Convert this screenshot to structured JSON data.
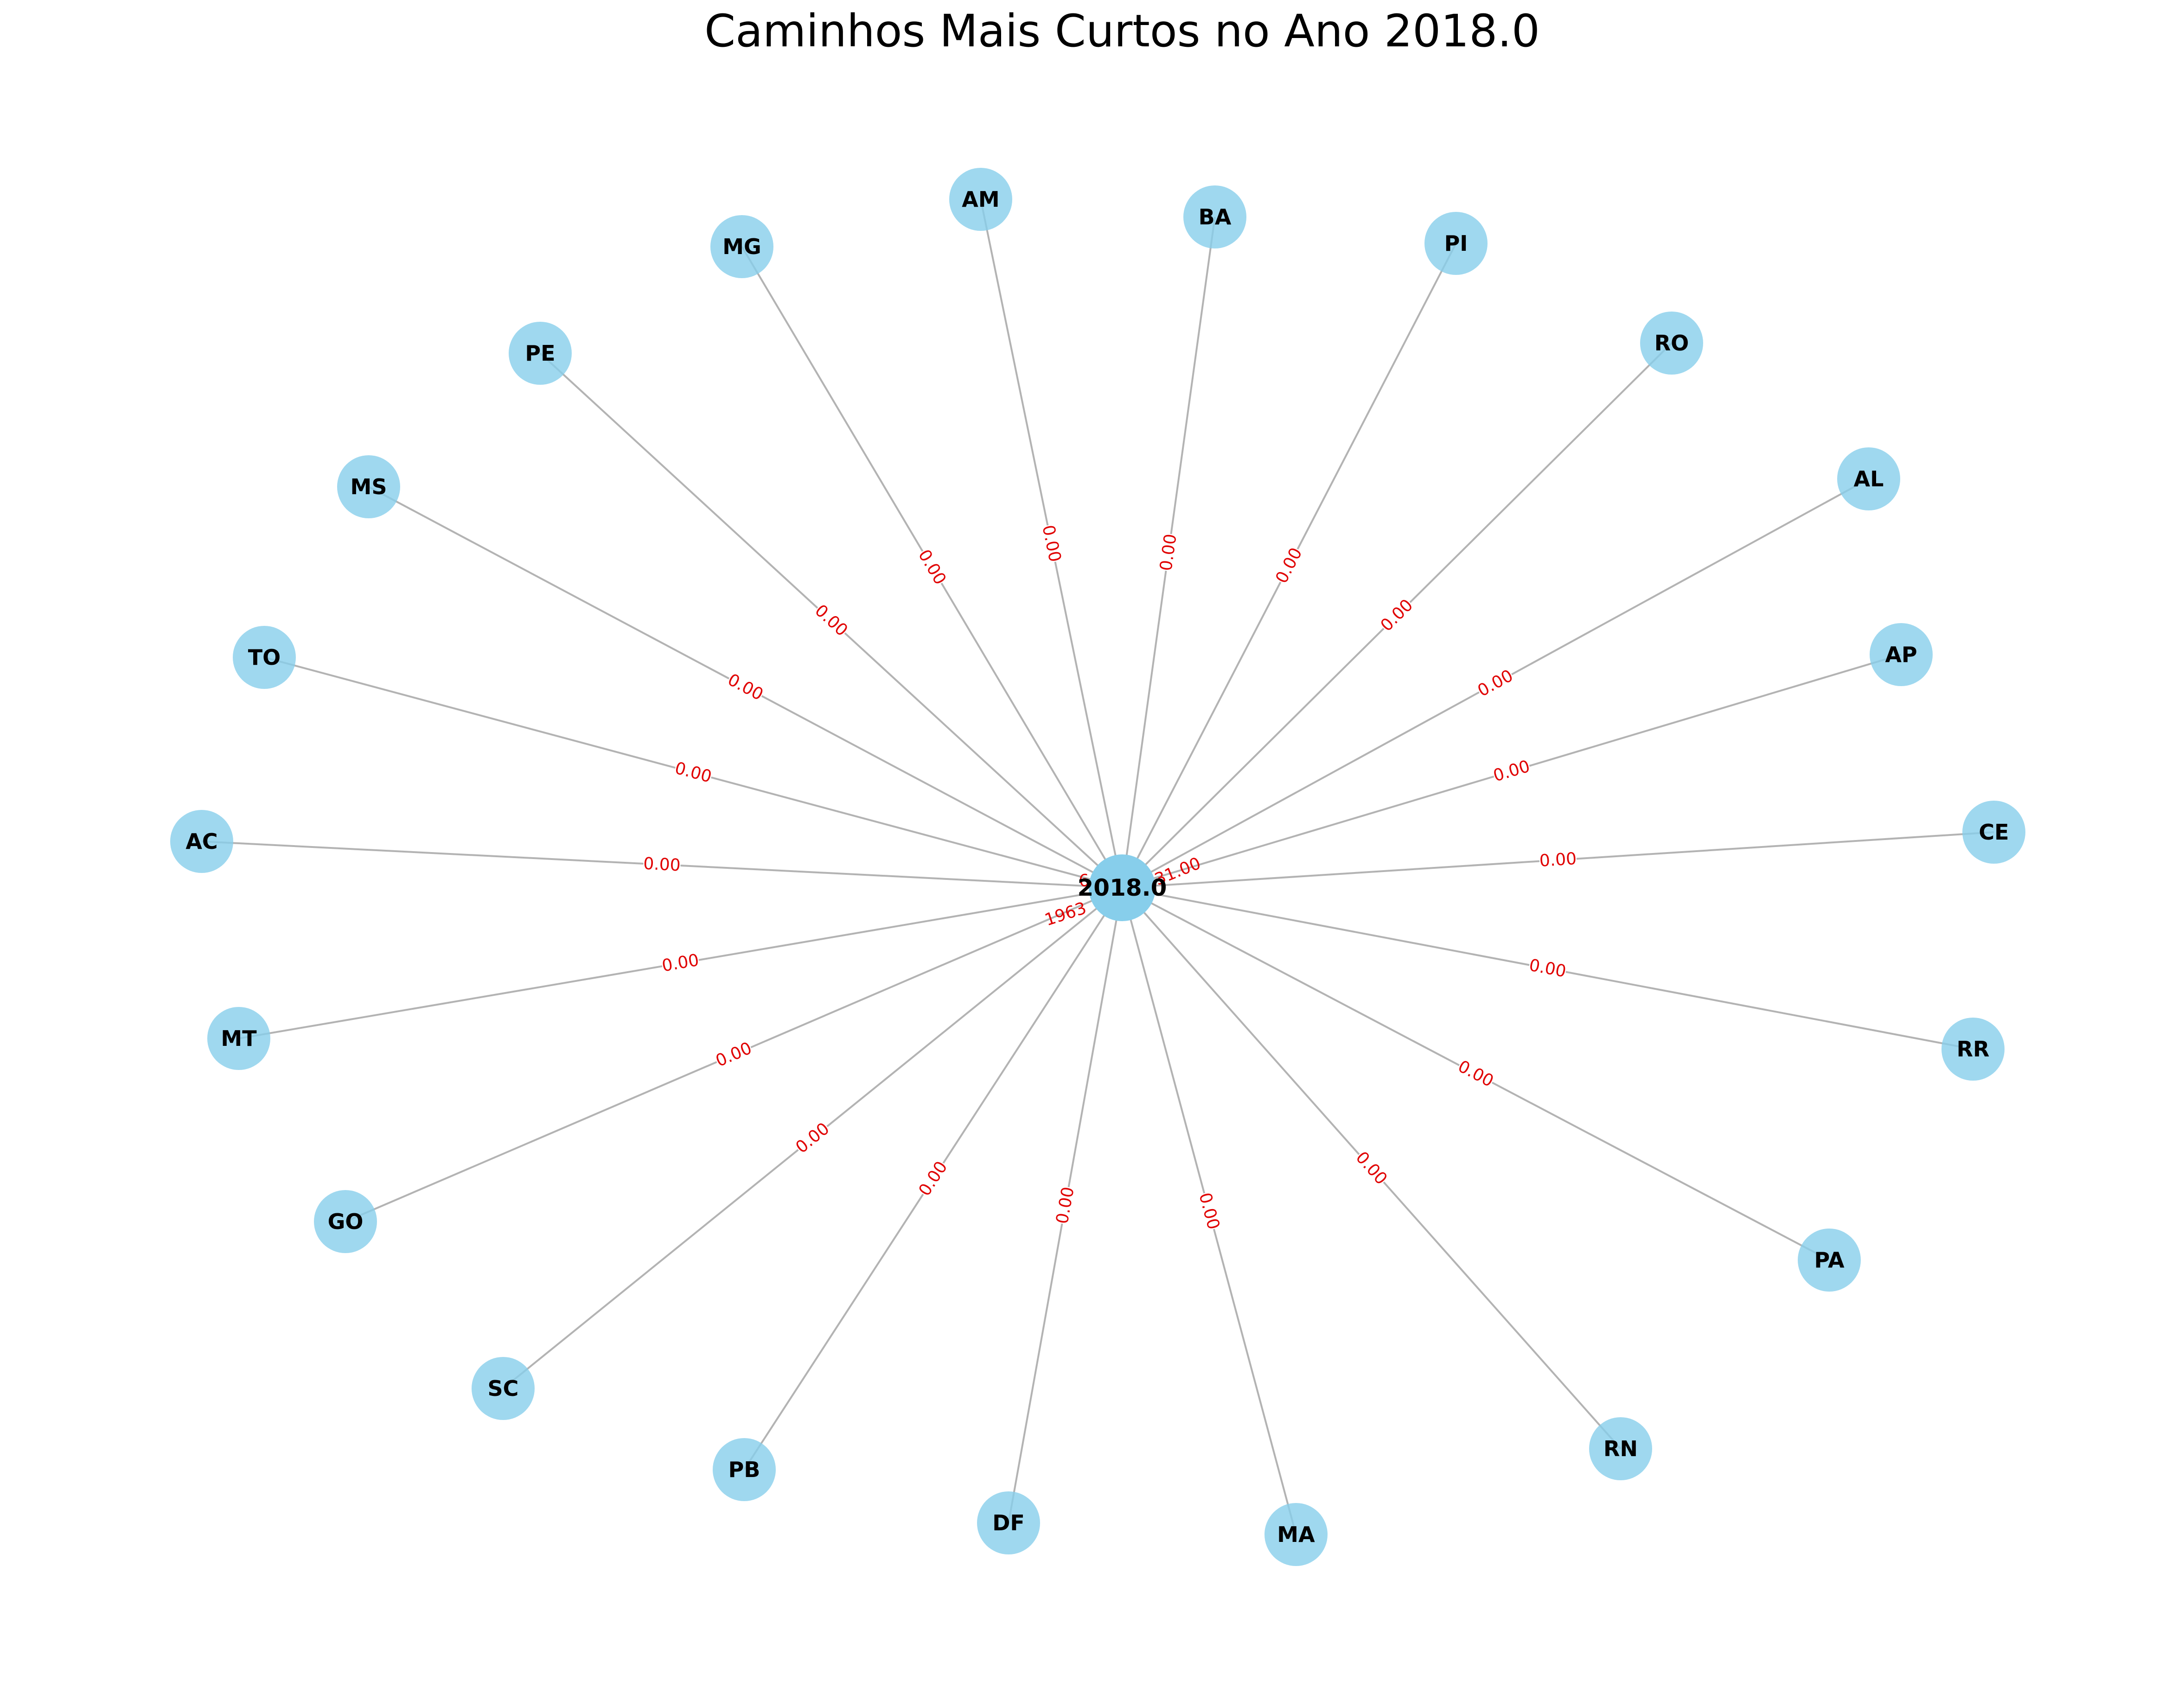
{
  "title": "Caminhos Mais Curtos no Ano 2018.0",
  "colors": {
    "node": "#87ceeb",
    "edge": "#b3b3b3",
    "edge_label": "#e00000"
  },
  "center": {
    "label": "2018.0"
  },
  "center_edge_labels": [
    "6",
    "1963",
    "31.00"
  ],
  "nodes": [
    {
      "id": "AM",
      "edge_label": "0.00"
    },
    {
      "id": "BA",
      "edge_label": "0.00"
    },
    {
      "id": "PI",
      "edge_label": "0.00"
    },
    {
      "id": "RO",
      "edge_label": "0.00"
    },
    {
      "id": "AL",
      "edge_label": "0.00"
    },
    {
      "id": "AP",
      "edge_label": "0.00"
    },
    {
      "id": "CE",
      "edge_label": "0.00"
    },
    {
      "id": "RR",
      "edge_label": "0.00"
    },
    {
      "id": "PA",
      "edge_label": "0.00"
    },
    {
      "id": "RN",
      "edge_label": "0.00"
    },
    {
      "id": "MA",
      "edge_label": "0.00"
    },
    {
      "id": "DF",
      "edge_label": "0.00"
    },
    {
      "id": "PB",
      "edge_label": "0.00"
    },
    {
      "id": "SC",
      "edge_label": "0.00"
    },
    {
      "id": "GO",
      "edge_label": "0.00"
    },
    {
      "id": "MT",
      "edge_label": "0.00"
    },
    {
      "id": "AC",
      "edge_label": "0.00"
    },
    {
      "id": "TO",
      "edge_label": "0.00"
    },
    {
      "id": "MS",
      "edge_label": "0.00"
    },
    {
      "id": "PE",
      "edge_label": "0.00"
    },
    {
      "id": "MG",
      "edge_label": "0.00"
    }
  ]
}
